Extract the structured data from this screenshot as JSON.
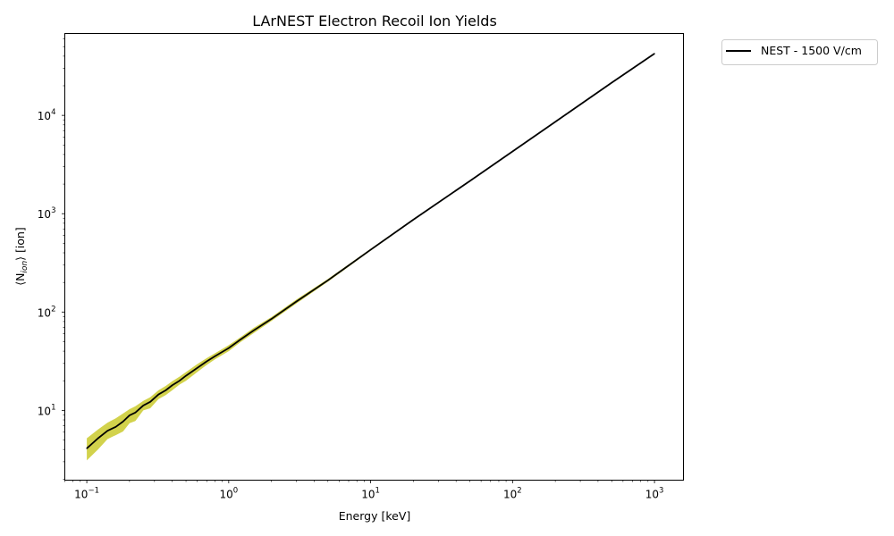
{
  "chart_data": {
    "type": "line",
    "title": "LArNEST Electron Recoil Ion Yields",
    "xlabel": "Energy [keV]",
    "ylabel": "⟨N",
    "ylabel_sub": "ion",
    "ylabel_suffix": "⟩ [ion]",
    "xscale": "log",
    "yscale": "log",
    "xlim": [
      0.07,
      1600
    ],
    "ylim": [
      1.95,
      68000
    ],
    "x_ticks": [
      {
        "base": "10",
        "exp": "−1",
        "value": 0.1
      },
      {
        "base": "10",
        "exp": "0",
        "value": 1
      },
      {
        "base": "10",
        "exp": "1",
        "value": 10
      },
      {
        "base": "10",
        "exp": "2",
        "value": 100
      },
      {
        "base": "10",
        "exp": "3",
        "value": 1000
      }
    ],
    "y_ticks": [
      {
        "base": "10",
        "exp": "1",
        "value": 10
      },
      {
        "base": "10",
        "exp": "2",
        "value": 100
      },
      {
        "base": "10",
        "exp": "3",
        "value": 1000
      },
      {
        "base": "10",
        "exp": "4",
        "value": 10000
      }
    ],
    "legend": {
      "location": "outside-top-right",
      "entries": [
        "NEST - 1500 V/cm"
      ]
    },
    "series": [
      {
        "name": "NEST - 1500 V/cm",
        "color": "#000000",
        "band_color": "#bfbf00",
        "x": [
          0.1,
          0.12,
          0.14,
          0.16,
          0.18,
          0.2,
          0.22,
          0.25,
          0.28,
          0.32,
          0.36,
          0.4,
          0.45,
          0.5,
          0.6,
          0.7,
          0.8,
          1,
          1.2,
          1.5,
          2,
          3,
          5,
          10,
          20,
          50,
          100,
          200,
          500,
          1000
        ],
        "y": [
          4.1,
          5.2,
          6.2,
          6.8,
          7.7,
          8.9,
          9.5,
          11.2,
          12.2,
          14.5,
          16.0,
          18.0,
          20.0,
          22.5,
          27.0,
          31.5,
          35.5,
          43.0,
          52.0,
          65.0,
          85.0,
          128,
          210,
          430,
          870,
          2150,
          4300,
          8600,
          21500,
          42500
        ],
        "y_lower": [
          3.1,
          4.0,
          5.1,
          5.6,
          6.1,
          7.4,
          7.8,
          10.0,
          10.5,
          13.0,
          14.3,
          16.0,
          18.3,
          20.0,
          24.5,
          29.0,
          33.0,
          40.0,
          49.0,
          61.0,
          81.0,
          122,
          203,
          420,
          855,
          2120,
          4250,
          8500,
          21300,
          42200
        ],
        "y_upper": [
          5.2,
          6.4,
          7.5,
          8.3,
          9.3,
          10.3,
          11.0,
          12.5,
          13.6,
          16.0,
          17.7,
          19.8,
          22.0,
          24.5,
          29.5,
          34.0,
          38.0,
          46.0,
          55.0,
          69.0,
          89.0,
          134,
          217,
          440,
          885,
          2180,
          4350,
          8700,
          21700,
          42800
        ]
      }
    ]
  }
}
